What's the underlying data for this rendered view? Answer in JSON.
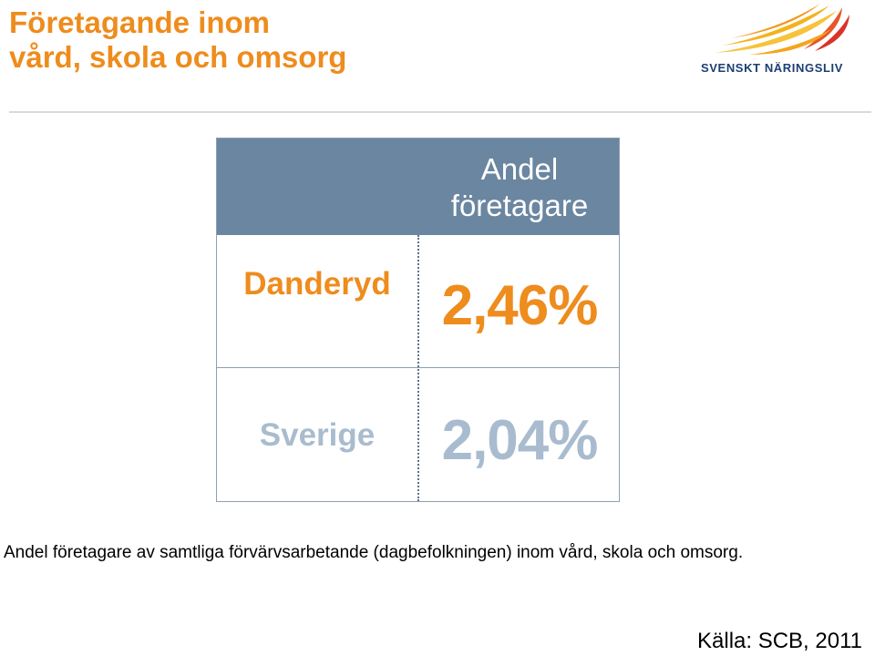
{
  "slide": {
    "title_line1": "Företagande inom",
    "title_line2": "vård, skola och omsorg",
    "logo_text": "SVENSKT NÄRINGSLIV",
    "table": {
      "header_line1": "Andel",
      "header_line2": "företagare",
      "rows": [
        {
          "label": "Danderyd",
          "value": "2,46%"
        },
        {
          "label": "Sverige",
          "value": "2,04%"
        }
      ]
    },
    "caption": "Andel företagare av samtliga förvärvsarbetande (dagbefolkningen) inom vård, skola och omsorg.",
    "source": "Källa: SCB, 2011"
  },
  "colors": {
    "accent_orange": "#ee8c1d",
    "header_blue": "#6b86a0",
    "muted_blue": "#a9bccf",
    "logo_navy": "#1b3f73"
  }
}
